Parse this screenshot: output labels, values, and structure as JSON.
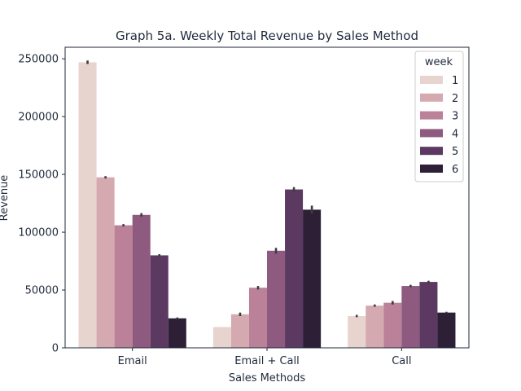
{
  "chart_data": {
    "type": "bar",
    "title": "Graph 5a. Weekly Total Revenue by Sales Method",
    "xlabel": "Sales Methods",
    "ylabel": "Revenue",
    "categories": [
      "Email",
      "Email + Call",
      "Call"
    ],
    "ylim": [
      0,
      260000
    ],
    "yticks": [
      0,
      50000,
      100000,
      150000,
      200000,
      250000
    ],
    "yticklabels": [
      "0",
      "50000",
      "100000",
      "150000",
      "200000",
      "250000"
    ],
    "legend": {
      "title": "week",
      "position": "top-right"
    },
    "series": [
      {
        "name": "1",
        "color": "#e8d4cf",
        "values": [
          247000,
          18000,
          27500
        ],
        "error": [
          1500,
          0,
          1000
        ]
      },
      {
        "name": "2",
        "color": "#d5a9b0",
        "values": [
          147500,
          29000,
          36500
        ],
        "error": [
          1000,
          1500,
          1000
        ]
      },
      {
        "name": "3",
        "color": "#ba8198",
        "values": [
          106000,
          52000,
          39000
        ],
        "error": [
          1000,
          1500,
          1500
        ]
      },
      {
        "name": "4",
        "color": "#8e5a80",
        "values": [
          115000,
          84000,
          53500
        ],
        "error": [
          1500,
          2500,
          1000
        ]
      },
      {
        "name": "5",
        "color": "#5b3960",
        "values": [
          80000,
          137000,
          57000
        ],
        "error": [
          1000,
          2000,
          1000
        ]
      },
      {
        "name": "6",
        "color": "#2d1f36",
        "values": [
          25500,
          119500,
          30500
        ],
        "error": [
          800,
          3500,
          700
        ]
      }
    ]
  }
}
